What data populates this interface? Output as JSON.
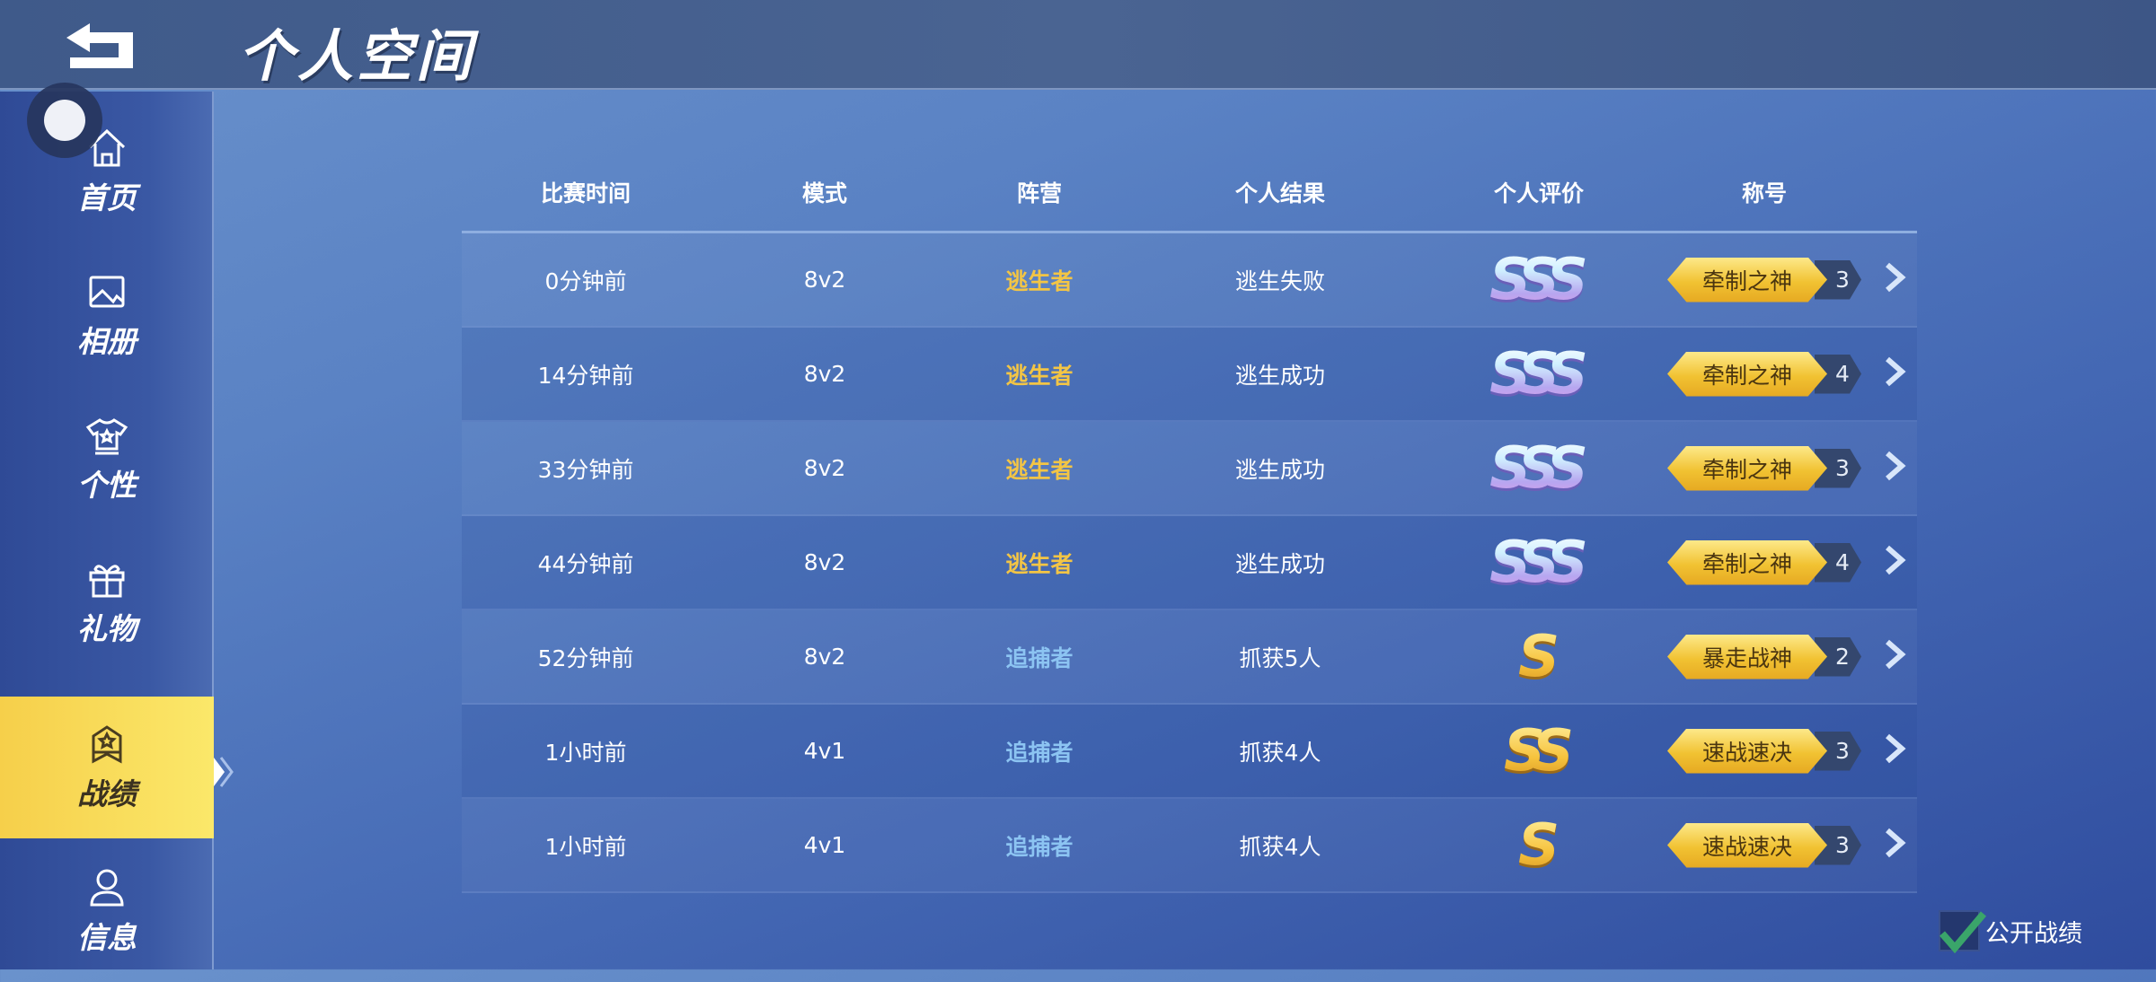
{
  "header": {
    "title": "个人空间",
    "back_icon": "back-arrow-icon"
  },
  "sidebar": {
    "items": [
      {
        "label": "首页",
        "icon": "home-icon"
      },
      {
        "label": "相册",
        "icon": "image-icon"
      },
      {
        "label": "个性",
        "icon": "shirt-icon"
      },
      {
        "label": "礼物",
        "icon": "gift-icon"
      },
      {
        "label": "战绩",
        "icon": "badge-star-icon",
        "active": true
      },
      {
        "label": "信息",
        "icon": "user-icon"
      }
    ]
  },
  "table": {
    "headers": [
      "比赛时间",
      "模式",
      "阵营",
      "个人结果",
      "个人评价",
      "称号"
    ],
    "rows": [
      {
        "time": "0分钟前",
        "mode": "8v2",
        "camp": "逃生者",
        "result": "逃生失败",
        "grade": "SSS",
        "title": "牵制之神",
        "level": "3"
      },
      {
        "time": "14分钟前",
        "mode": "8v2",
        "camp": "逃生者",
        "result": "逃生成功",
        "grade": "SSS",
        "title": "牵制之神",
        "level": "4"
      },
      {
        "time": "33分钟前",
        "mode": "8v2",
        "camp": "逃生者",
        "result": "逃生成功",
        "grade": "SSS",
        "title": "牵制之神",
        "level": "3"
      },
      {
        "time": "44分钟前",
        "mode": "8v2",
        "camp": "逃生者",
        "result": "逃生成功",
        "grade": "SSS",
        "title": "牵制之神",
        "level": "4"
      },
      {
        "time": "52分钟前",
        "mode": "8v2",
        "camp": "追捕者",
        "result": "抓获5人",
        "grade": "S",
        "title": "暴走战神",
        "level": "2"
      },
      {
        "time": "1小时前",
        "mode": "4v1",
        "camp": "追捕者",
        "result": "抓获4人",
        "grade": "SS",
        "title": "速战速决",
        "level": "3"
      },
      {
        "time": "1小时前",
        "mode": "4v1",
        "camp": "追捕者",
        "result": "抓获4人",
        "grade": "S",
        "title": "速战速决",
        "level": "3"
      }
    ]
  },
  "footer": {
    "public_label": "公开战绩",
    "public_checked": true
  },
  "colors": {
    "escaper": "#f3c545",
    "hunter": "#8cc4f2",
    "active_tab": "#f6cf4a"
  }
}
